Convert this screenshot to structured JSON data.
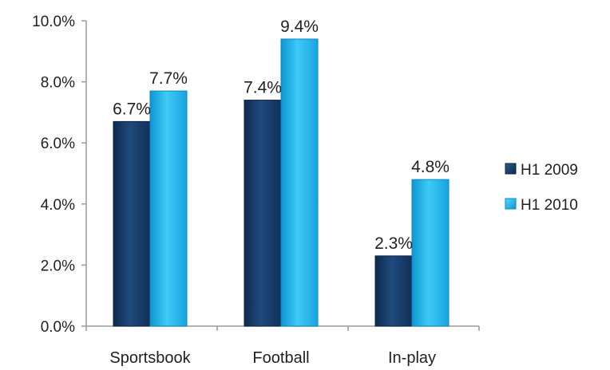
{
  "chart_data": {
    "type": "bar",
    "categories": [
      "Sportsbook",
      "Football",
      "In-play"
    ],
    "series": [
      {
        "name": "H1 2009",
        "values": [
          6.7,
          7.4,
          2.3
        ],
        "labels": [
          "6.7%",
          "7.4%",
          "2.3%"
        ]
      },
      {
        "name": "H1 2010",
        "values": [
          7.7,
          9.4,
          4.8
        ],
        "labels": [
          "7.7%",
          "9.4%",
          "4.8%"
        ]
      }
    ],
    "y_ticks": [
      "0.0%",
      "2.0%",
      "4.0%",
      "6.0%",
      "8.0%",
      "10.0%"
    ],
    "ylim": [
      0,
      10
    ],
    "grid": false,
    "legend": "right"
  },
  "colors": {
    "H1 2009": "#1a3a63",
    "H1 2010": "#1fb1e8",
    "axis": "#9a9a9a",
    "text": "#1f1f1f"
  }
}
